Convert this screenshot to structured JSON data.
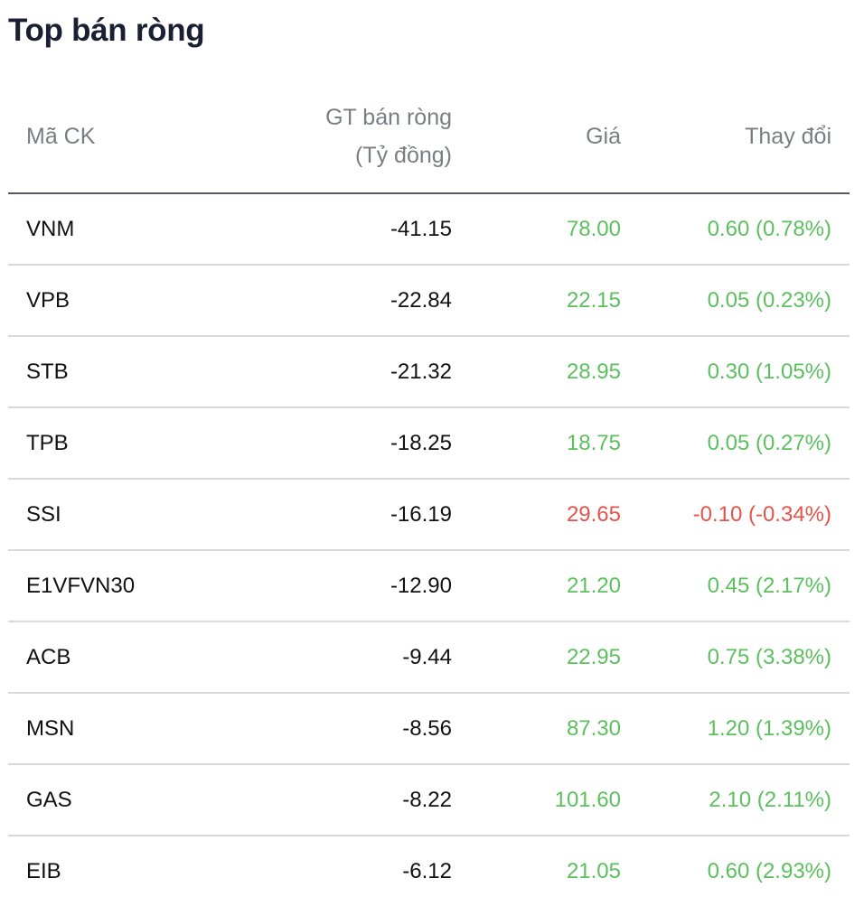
{
  "title": "Top bán ròng",
  "columns": {
    "code": "Mã CK",
    "value_line1": "GT bán ròng",
    "value_line2": "(Tỷ đồng)",
    "price": "Giá",
    "change": "Thay đổi"
  },
  "colors": {
    "up": "#5cc05f",
    "down": "#e5534b"
  },
  "rows": [
    {
      "code": "VNM",
      "value": "-41.15",
      "price": "78.00",
      "change": "0.60 (0.78%)",
      "trend": "up"
    },
    {
      "code": "VPB",
      "value": "-22.84",
      "price": "22.15",
      "change": "0.05 (0.23%)",
      "trend": "up"
    },
    {
      "code": "STB",
      "value": "-21.32",
      "price": "28.95",
      "change": "0.30 (1.05%)",
      "trend": "up"
    },
    {
      "code": "TPB",
      "value": "-18.25",
      "price": "18.75",
      "change": "0.05 (0.27%)",
      "trend": "up"
    },
    {
      "code": "SSI",
      "value": "-16.19",
      "price": "29.65",
      "change": "-0.10 (-0.34%)",
      "trend": "down"
    },
    {
      "code": "E1VFVN30",
      "value": "-12.90",
      "price": "21.20",
      "change": "0.45 (2.17%)",
      "trend": "up"
    },
    {
      "code": "ACB",
      "value": "-9.44",
      "price": "22.95",
      "change": "0.75 (3.38%)",
      "trend": "up"
    },
    {
      "code": "MSN",
      "value": "-8.56",
      "price": "87.30",
      "change": "1.20 (1.39%)",
      "trend": "up"
    },
    {
      "code": "GAS",
      "value": "-8.22",
      "price": "101.60",
      "change": "2.10 (2.11%)",
      "trend": "up"
    },
    {
      "code": "EIB",
      "value": "-6.12",
      "price": "21.05",
      "change": "0.60 (2.93%)",
      "trend": "up"
    }
  ]
}
